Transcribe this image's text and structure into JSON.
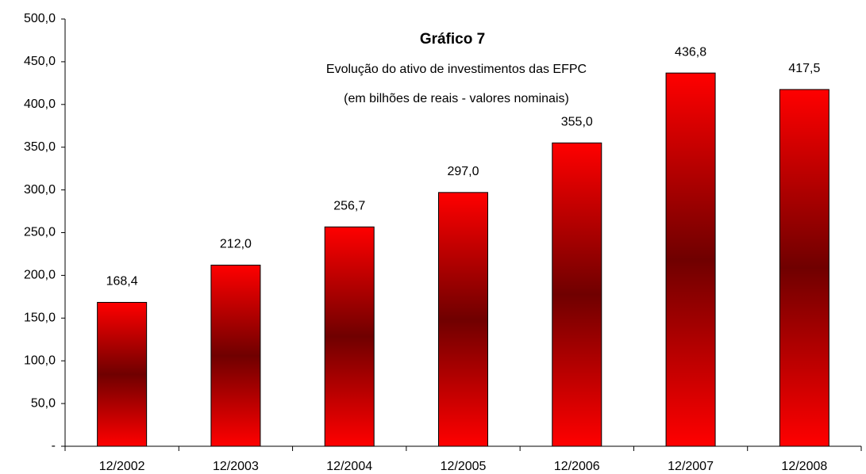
{
  "chart_data": {
    "type": "bar",
    "title": "Gráfico  7",
    "subtitle": [
      "Evolução do ativo de investimentos das EFPC",
      "(em bilhões de reais - valores nominais)"
    ],
    "categories": [
      "12/2002",
      "12/2003",
      "12/2004",
      "12/2005",
      "12/2006",
      "12/2007",
      "12/2008"
    ],
    "values": [
      168.4,
      212.0,
      256.7,
      297.0,
      355.0,
      436.8,
      417.5
    ],
    "value_labels": [
      "168,4",
      "212,0",
      "256,7",
      "297,0",
      "355,0",
      "436,8",
      "417,5"
    ],
    "color": "#ff0000",
    "ylim": [
      0,
      500
    ],
    "yticks": [
      {
        "value": 0,
        "label": "-"
      },
      {
        "value": 50,
        "label": "50,0"
      },
      {
        "value": 100,
        "label": "100,0"
      },
      {
        "value": 150,
        "label": "150,0"
      },
      {
        "value": 200,
        "label": "200,0"
      },
      {
        "value": 250,
        "label": "250,0"
      },
      {
        "value": 300,
        "label": "300,0"
      },
      {
        "value": 350,
        "label": "350,0"
      },
      {
        "value": 400,
        "label": "400,0"
      },
      {
        "value": 450,
        "label": "450,0"
      },
      {
        "value": 500,
        "label": "500,0"
      }
    ],
    "grid": false
  }
}
